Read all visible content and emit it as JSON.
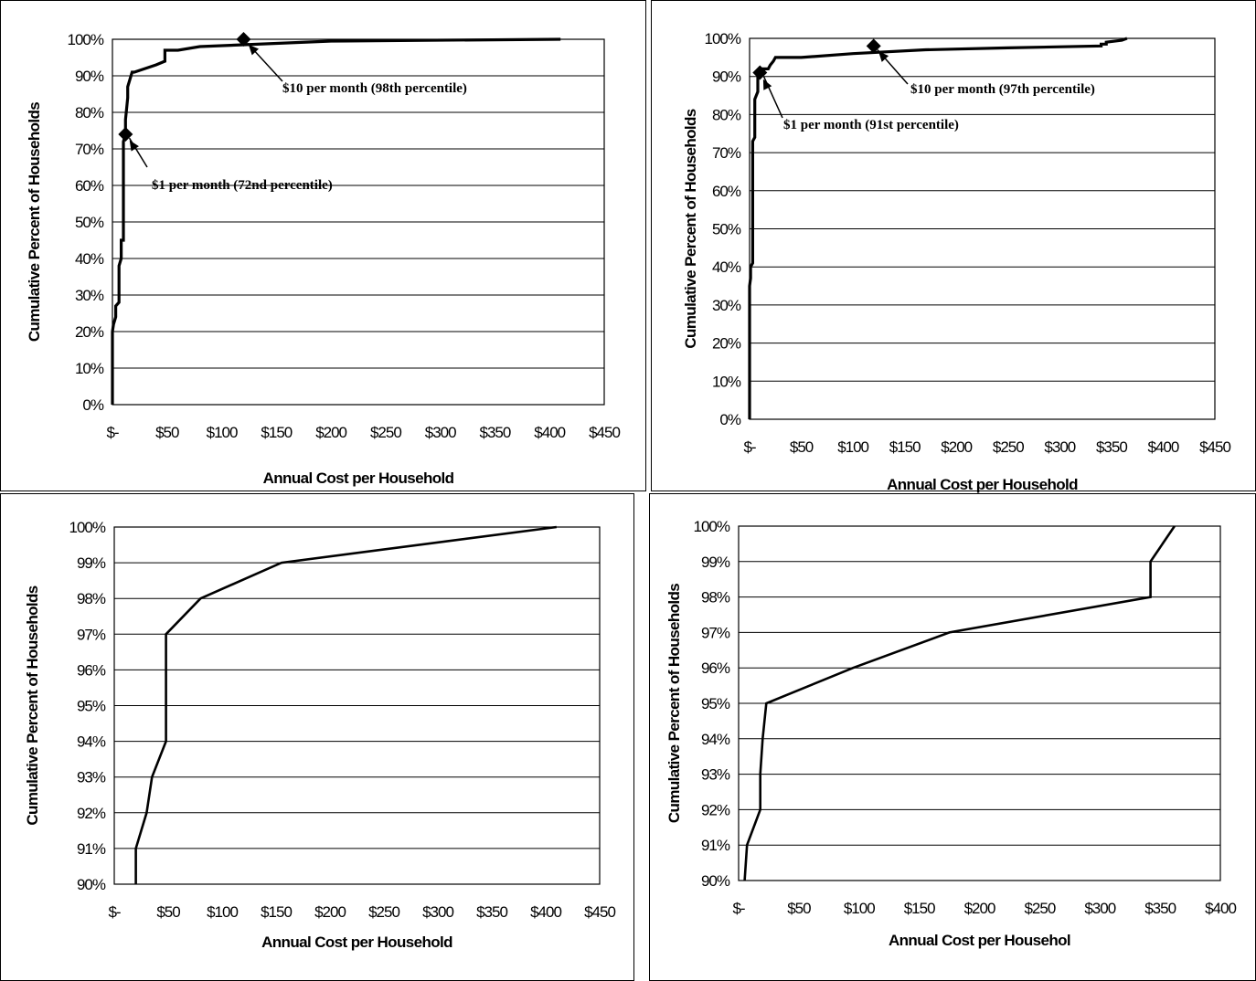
{
  "chart_data": [
    {
      "type": "line",
      "xlabel": "Annual Cost per Household",
      "ylabel": "Cumulative Percent of Households",
      "x_ticks": [
        "$-",
        "$50",
        "$100",
        "$150",
        "$200",
        "$250",
        "$300",
        "$350",
        "$400",
        "$450"
      ],
      "y_ticks": [
        "0%",
        "10%",
        "20%",
        "30%",
        "40%",
        "50%",
        "60%",
        "70%",
        "80%",
        "90%",
        "100%"
      ],
      "xlim": [
        0,
        450
      ],
      "ylim": [
        0,
        100
      ],
      "grid": true,
      "series": [
        {
          "x": [
            0,
            0,
            1,
            2,
            3,
            3,
            6,
            6,
            8,
            8,
            10,
            10,
            12,
            12,
            14,
            14,
            16,
            18,
            20,
            30,
            40,
            48,
            48,
            60,
            80,
            120,
            200,
            410
          ],
          "y": [
            0,
            20,
            22,
            23,
            24,
            27,
            28,
            38,
            40,
            45,
            45,
            72,
            74,
            78,
            84,
            87,
            89,
            91,
            91,
            92,
            93,
            94,
            97,
            97,
            98,
            98.5,
            99.5,
            100
          ]
        }
      ],
      "annotations": [
        {
          "text": "$10 per month (98th percentile)",
          "x": 120,
          "y": 100
        },
        {
          "text": "$1 per month (72nd percentile)",
          "x": 12,
          "y": 74
        }
      ]
    },
    {
      "type": "line",
      "xlabel": "Annual Cost per Household",
      "ylabel": "Cumulative Percent of Households",
      "x_ticks": [
        "$-",
        "$50",
        "$100",
        "$150",
        "$200",
        "$250",
        "$300",
        "$350",
        "$400",
        "$450"
      ],
      "y_ticks": [
        "0%",
        "10%",
        "20%",
        "30%",
        "40%",
        "50%",
        "60%",
        "70%",
        "80%",
        "90%",
        "100%"
      ],
      "xlim": [
        0,
        450
      ],
      "ylim": [
        0,
        100
      ],
      "grid": true,
      "series": [
        {
          "x": [
            0,
            0,
            1,
            1,
            3,
            3,
            5,
            5,
            8,
            8,
            10,
            12,
            15,
            18,
            20,
            23,
            25,
            50,
            100,
            170,
            250,
            340,
            340,
            345,
            345,
            360,
            365
          ],
          "y": [
            0,
            35,
            37,
            40,
            41,
            73,
            74,
            84,
            86,
            91,
            91,
            92,
            92,
            92,
            93,
            94,
            95,
            95,
            96,
            97,
            97.5,
            98,
            98.5,
            98.5,
            99,
            99.5,
            100
          ]
        }
      ],
      "annotations": [
        {
          "text": "$10 per month (97th percentile)",
          "x": 120,
          "y": 98
        },
        {
          "text": "$1 per month (91st percentile)",
          "x": 10,
          "y": 91
        }
      ]
    },
    {
      "type": "line",
      "xlabel": "Annual Cost per Household",
      "ylabel": "Cumulative Percent of Households",
      "x_ticks": [
        "$-",
        "$50",
        "$100",
        "$150",
        "$200",
        "$250",
        "$300",
        "$350",
        "$400",
        "$450"
      ],
      "y_ticks": [
        "90%",
        "91%",
        "92%",
        "93%",
        "94%",
        "95%",
        "96%",
        "97%",
        "98%",
        "99%",
        "100%"
      ],
      "xlim": [
        0,
        450
      ],
      "ylim": [
        90,
        100
      ],
      "grid": true,
      "series": [
        {
          "x": [
            20,
            20,
            30,
            35,
            48,
            48,
            48,
            80,
            155,
            410
          ],
          "y": [
            90,
            91,
            92,
            93,
            94,
            95,
            97,
            98,
            99,
            100
          ]
        }
      ],
      "annotations": []
    },
    {
      "type": "line",
      "xlabel": "Annual Cost per Househol",
      "ylabel": "Cumulative Percent of Households",
      "x_ticks": [
        "$-",
        "$50",
        "$100",
        "$150",
        "$200",
        "$250",
        "$300",
        "$350",
        "$400"
      ],
      "y_ticks": [
        "90%",
        "91%",
        "92%",
        "93%",
        "94%",
        "95%",
        "96%",
        "97%",
        "98%",
        "99%",
        "100%"
      ],
      "xlim": [
        0,
        400
      ],
      "ylim": [
        90,
        100
      ],
      "grid": true,
      "series": [
        {
          "x": [
            5,
            7,
            18,
            18,
            20,
            23,
            95,
            175,
            342,
            342,
            362
          ],
          "y": [
            90,
            91,
            92,
            93,
            94,
            95,
            96,
            97,
            98,
            99,
            100
          ]
        }
      ],
      "annotations": []
    }
  ]
}
